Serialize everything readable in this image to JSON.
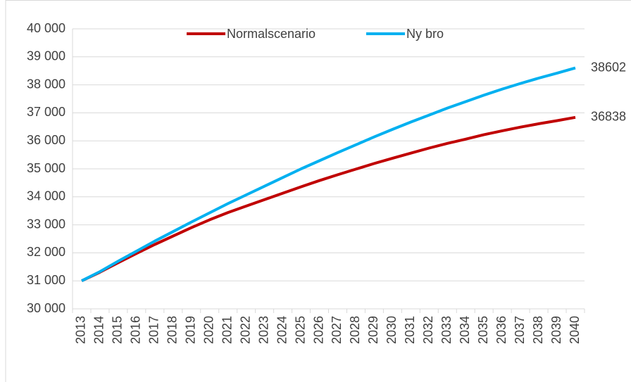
{
  "chart_data": {
    "type": "line",
    "categories": [
      "2013",
      "2014",
      "2015",
      "2016",
      "2017",
      "2018",
      "2019",
      "2020",
      "2021",
      "2022",
      "2023",
      "2024",
      "2025",
      "2026",
      "2027",
      "2028",
      "2029",
      "2030",
      "2031",
      "2032",
      "2033",
      "2034",
      "2035",
      "2036",
      "2037",
      "2038",
      "2039",
      "2040"
    ],
    "series": [
      {
        "name": "Normalscenario",
        "color": "#c00000",
        "values": [
          31000,
          31310,
          31650,
          31980,
          32300,
          32600,
          32900,
          33180,
          33440,
          33670,
          33900,
          34130,
          34360,
          34580,
          34790,
          34990,
          35190,
          35380,
          35560,
          35740,
          35910,
          36060,
          36220,
          36360,
          36490,
          36610,
          36720,
          36838
        ]
      },
      {
        "name": "Ny bro",
        "color": "#00b0f0",
        "values": [
          31000,
          31330,
          31700,
          32060,
          32420,
          32760,
          33100,
          33430,
          33760,
          34070,
          34380,
          34690,
          35000,
          35290,
          35580,
          35860,
          36140,
          36410,
          36670,
          36920,
          37170,
          37400,
          37630,
          37850,
          38050,
          38240,
          38420,
          38602
        ]
      }
    ],
    "ylim": [
      30000,
      40000
    ],
    "yticks": [
      {
        "value": 30000,
        "label": "30 000"
      },
      {
        "value": 31000,
        "label": "31 000"
      },
      {
        "value": 32000,
        "label": "32 000"
      },
      {
        "value": 33000,
        "label": "33 000"
      },
      {
        "value": 34000,
        "label": "34 000"
      },
      {
        "value": 35000,
        "label": "35 000"
      },
      {
        "value": 36000,
        "label": "36 000"
      },
      {
        "value": 37000,
        "label": "37 000"
      },
      {
        "value": 38000,
        "label": "38 000"
      },
      {
        "value": 39000,
        "label": "39 000"
      },
      {
        "value": 40000,
        "label": "40 000"
      }
    ],
    "grid": true,
    "legend": "top"
  }
}
